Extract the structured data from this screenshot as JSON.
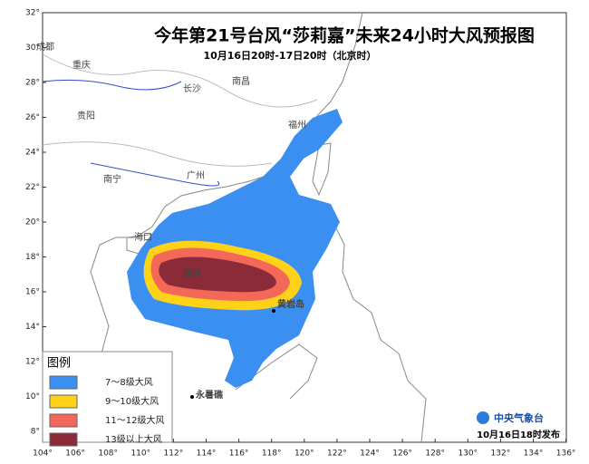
{
  "header": {
    "title": "今年第21号台风“莎莉嘉”未来24小时大风预报图",
    "subtitle": "10月16日20时-17日20时（北京时）"
  },
  "lon_ticks": [
    "104°",
    "106°",
    "108°",
    "110°",
    "112°",
    "114°",
    "116°",
    "118°",
    "120°",
    "122°",
    "124°",
    "126°",
    "128°",
    "130°",
    "132°",
    "134°",
    "136°"
  ],
  "lat_ticks": [
    "8°",
    "10°",
    "12°",
    "14°",
    "16°",
    "18°",
    "20°",
    "22°",
    "24°",
    "26°",
    "28°",
    "30°",
    "32°"
  ],
  "places": [
    "成都",
    "重庆",
    "贵阳",
    "长沙",
    "南昌",
    "福州",
    "南宁",
    "广州",
    "海口",
    "西沙",
    "黄岩岛",
    "永暑礁"
  ],
  "legend": {
    "title": "图例",
    "items": [
      "7～8级大风",
      "9～10级大风",
      "11～12级大风",
      "13级以上大风"
    ]
  },
  "footer": {
    "agency": "中央气象台",
    "issued": "10月16日18时发布"
  }
}
